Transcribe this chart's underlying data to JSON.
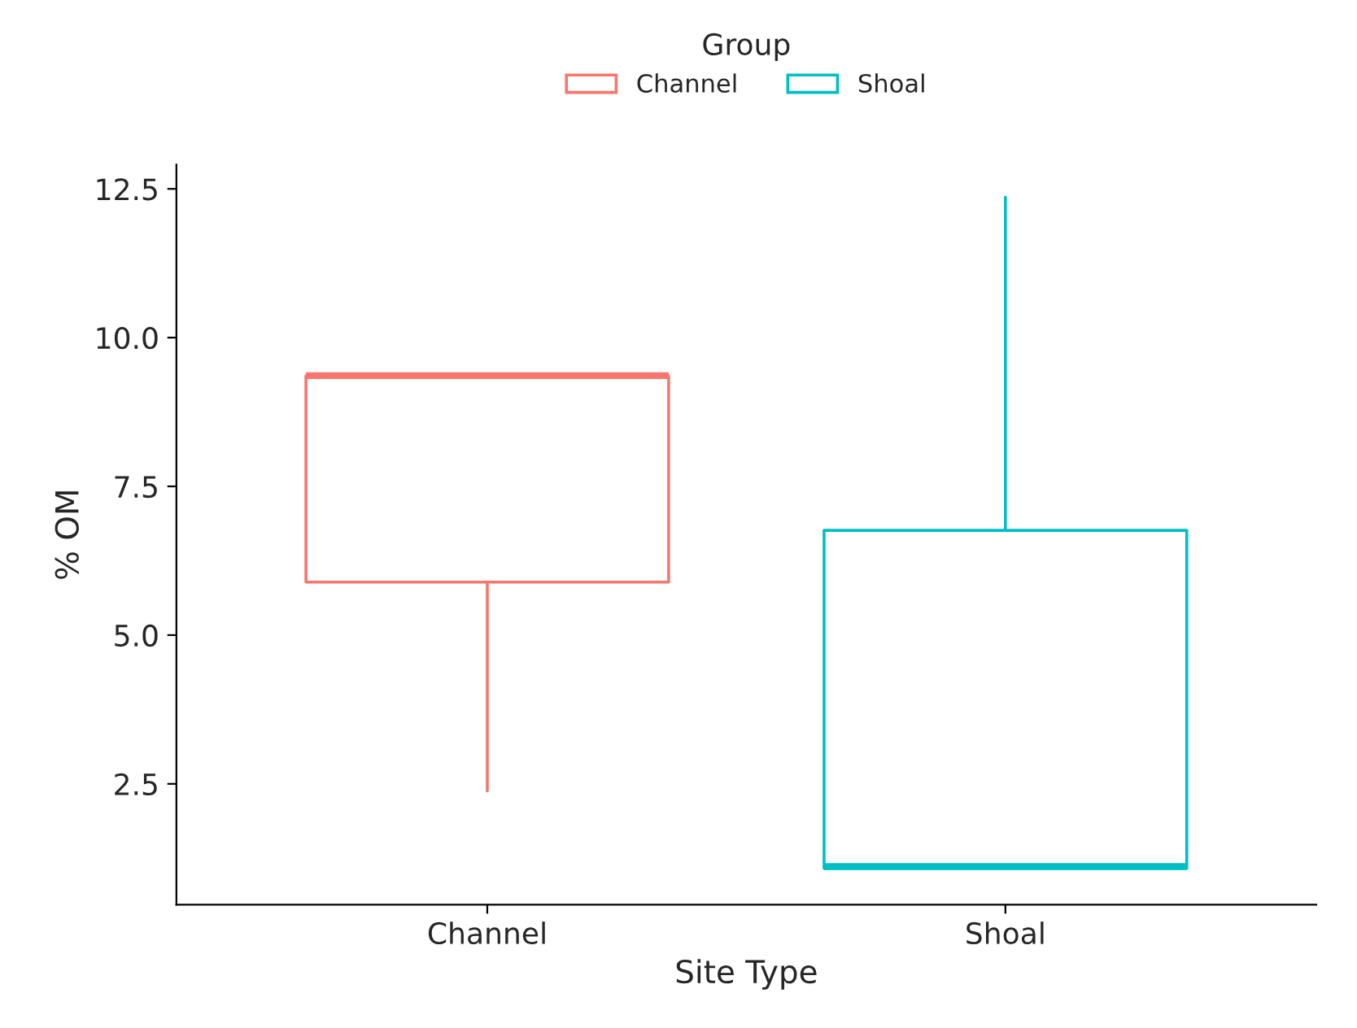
{
  "chart_data": {
    "type": "box",
    "xlabel": "Site Type",
    "ylabel": "% OM",
    "legend_title": "Group",
    "legend": "top",
    "categories": [
      "Channel",
      "Shoal"
    ],
    "series": [
      {
        "name": "Channel",
        "color": "#f8766d",
        "boxes": [
          {
            "low": 2.38,
            "q1": 5.89,
            "median": 9.36,
            "q3": 9.36,
            "high": 9.36
          },
          null
        ]
      },
      {
        "name": "Shoal",
        "color": "#00bfc4",
        "boxes": [
          null,
          {
            "low": 1.08,
            "q1": 1.08,
            "median": 1.11,
            "q3": 6.76,
            "high": 12.36
          }
        ]
      }
    ],
    "ylim": [
      0.47,
      12.91
    ],
    "yticks": [
      {
        "value": 2.5,
        "label": "2.5"
      },
      {
        "value": 5,
        "label": "5.0"
      },
      {
        "value": 7.5,
        "label": "7.5"
      },
      {
        "value": 10,
        "label": "10.0"
      },
      {
        "value": 12.5,
        "label": "12.5"
      }
    ],
    "grid": false
  }
}
